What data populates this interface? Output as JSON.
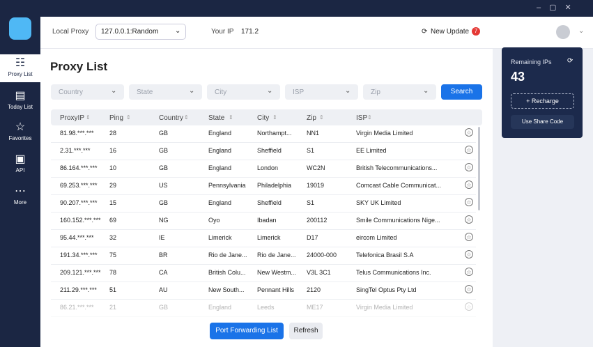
{
  "topbar": {
    "local_proxy_label": "Local Proxy",
    "local_proxy_value": "127.0.0.1:Random",
    "your_ip_label": "Your IP",
    "your_ip_value": "171.2",
    "new_update": "New Update",
    "update_count": 7
  },
  "sidebar": [
    "Proxy List",
    "Today List",
    "Favorites",
    "API",
    "More"
  ],
  "title": "Proxy List",
  "filters": [
    "Country",
    "State",
    "City",
    "ISP",
    "Zip"
  ],
  "search": "Search",
  "table": {
    "headers": [
      "ProxyIP",
      "Ping",
      "Country",
      "State",
      "City",
      "Zip",
      "ISP"
    ],
    "rows": [
      [
        "81.98.***.***",
        28,
        "GB",
        "England",
        "Northampt...",
        "NN1",
        "Virgin Media Limited"
      ],
      [
        "2.31.***.***",
        16,
        "GB",
        "England",
        "Sheffield",
        "S1",
        "EE Limited"
      ],
      [
        "86.164.***.***",
        10,
        "GB",
        "England",
        "London",
        "WC2N",
        "British Telecommunications..."
      ],
      [
        "69.253.***.***",
        29,
        "US",
        "Pennsylvania",
        "Philadelphia",
        "19019",
        "Comcast Cable Communicat..."
      ],
      [
        "90.207.***.***",
        15,
        "GB",
        "England",
        "Sheffield",
        "S1",
        "SKY UK Limited"
      ],
      [
        "160.152.***.***",
        69,
        "NG",
        "Oyo",
        "Ibadan",
        "200112",
        "Smile Communications Nige..."
      ],
      [
        "95.44.***.***",
        32,
        "IE",
        "Limerick",
        "Limerick",
        "D17",
        "eircom Limited"
      ],
      [
        "191.34.***.***",
        75,
        "BR",
        "Rio de Jane...",
        "Rio de Jane...",
        "24000-000",
        "Telefonica Brasil S.A"
      ],
      [
        "209.121.***.***",
        78,
        "CA",
        "British Colu...",
        "New Westm...",
        "V3L 3C1",
        "Telus Communications Inc."
      ],
      [
        "211.29.***.***",
        51,
        "AU",
        "New South...",
        "Pennant Hills",
        "2120",
        "SingTel Optus Pty Ltd"
      ],
      [
        "86.21.***.***",
        21,
        "GB",
        "England",
        "Leeds",
        "ME17",
        "Virgin Media Limited"
      ]
    ]
  },
  "buttons": {
    "port_forwarding": "Port Forwarding List",
    "refresh": "Refresh"
  },
  "panel": {
    "label": "Remaining IPs",
    "count": 43,
    "recharge": "+ Recharge",
    "share_code": "Use Share Code"
  }
}
